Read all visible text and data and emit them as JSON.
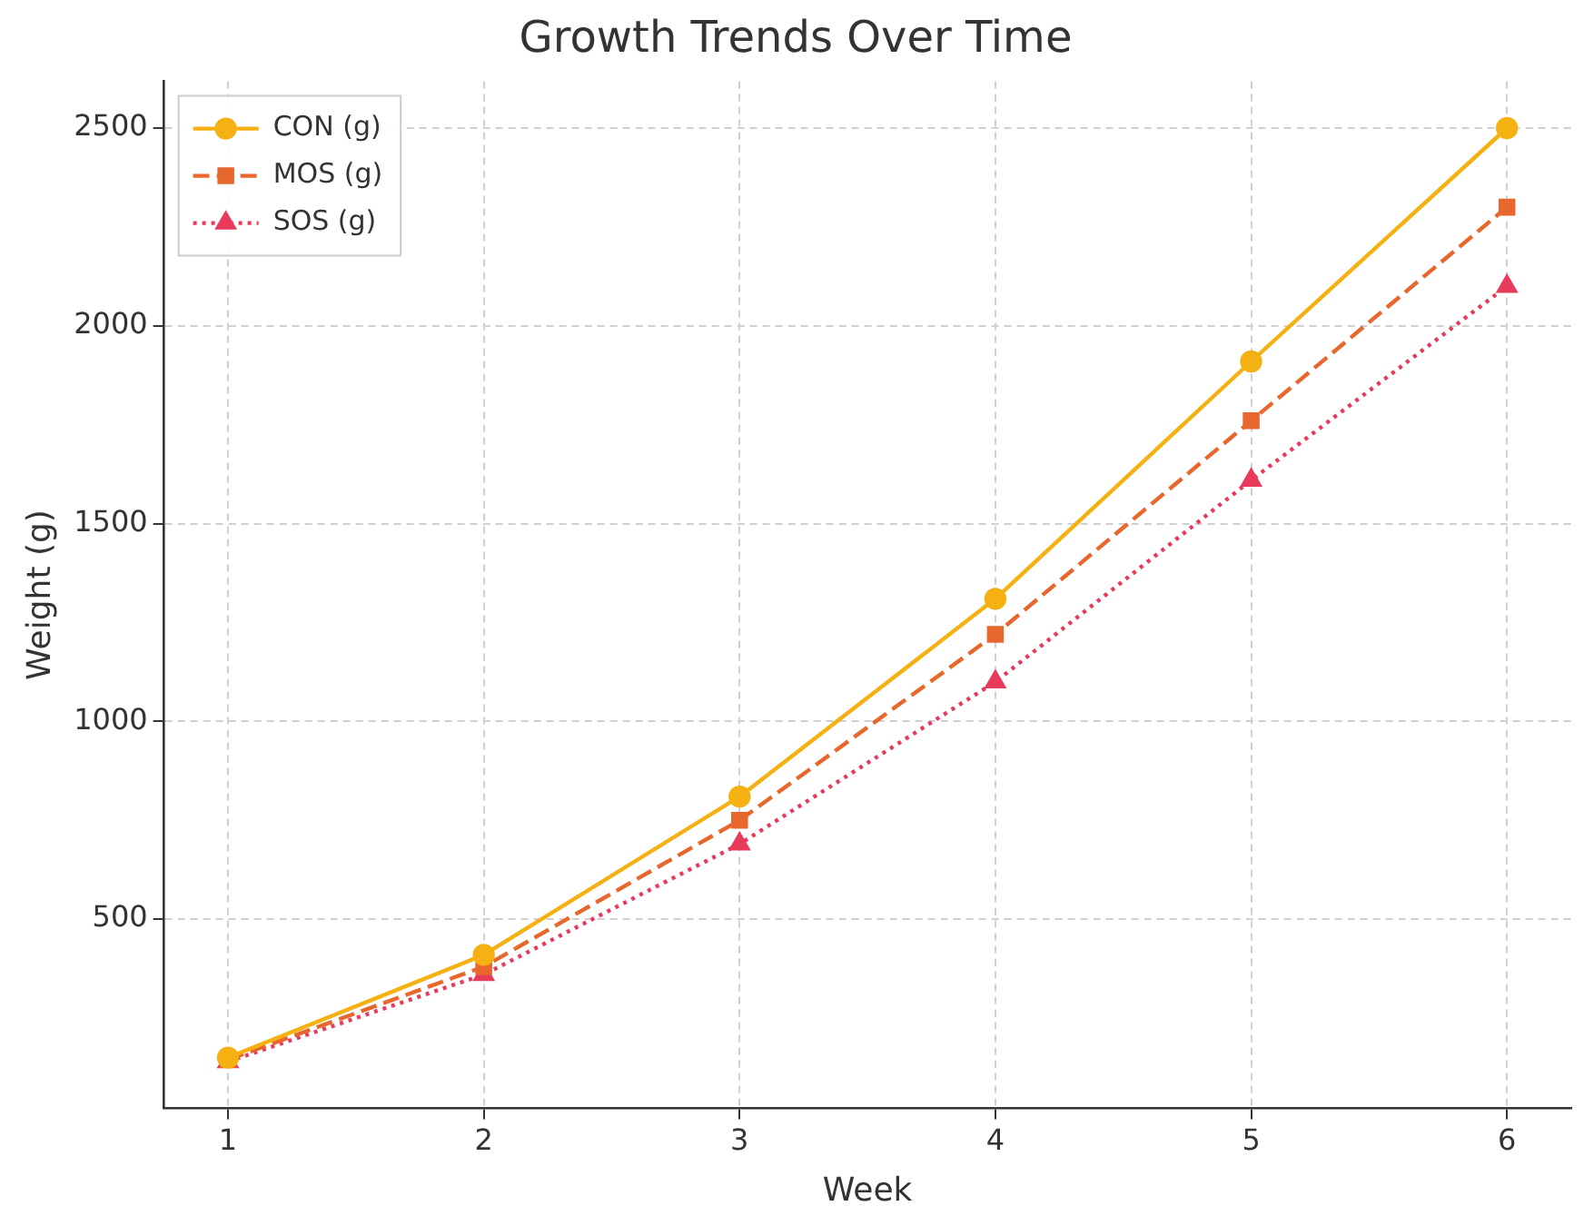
{
  "chart_data": {
    "type": "line",
    "title": "Growth Trends Over Time",
    "xlabel": "Week",
    "ylabel": "Weight (g)",
    "x": [
      1,
      2,
      3,
      4,
      5,
      6
    ],
    "series": [
      {
        "name": "CON (g)",
        "color": "#f5b111",
        "marker": "circle",
        "line_style": "solid",
        "values": [
          150,
          410,
          810,
          1310,
          1910,
          2500
        ]
      },
      {
        "name": "MOS (g)",
        "color": "#e8672c",
        "marker": "square",
        "line_style": "dashed",
        "values": [
          145,
          380,
          750,
          1220,
          1760,
          2300
        ]
      },
      {
        "name": "SOS (g)",
        "color": "#e83a5b",
        "marker": "triangle",
        "line_style": "dotted",
        "values": [
          140,
          360,
          690,
          1100,
          1610,
          2100
        ]
      }
    ],
    "xlim": [
      0.75,
      6.25
    ],
    "xticks": [
      1,
      2,
      3,
      4,
      5,
      6
    ],
    "ylim": [
      22,
      2618
    ],
    "yticks": [
      500,
      1000,
      1500,
      2000,
      2500
    ],
    "grid": true,
    "legend": "top left"
  }
}
